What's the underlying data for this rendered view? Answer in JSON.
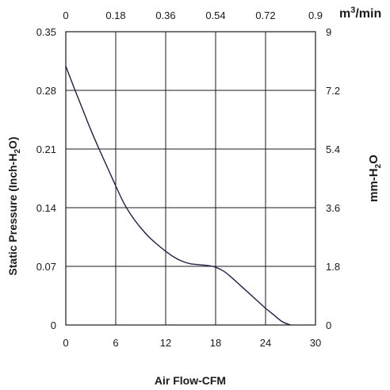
{
  "chart_data": {
    "type": "line",
    "x_bottom": {
      "label": "Air Flow-CFM",
      "range": [
        0,
        30
      ],
      "ticks": [
        "0",
        "6",
        "12",
        "18",
        "24",
        "30"
      ]
    },
    "x_top": {
      "label_base": "m",
      "label_sup": "3",
      "label_tail": "/min",
      "range": [
        0,
        0.9
      ],
      "ticks": [
        "0",
        "0.18",
        "0.36",
        "0.54",
        "0.72",
        "0.9"
      ]
    },
    "y_left": {
      "label_pre": "Static Pressure (Inch-H",
      "label_sub": "2",
      "label_post": "O)",
      "range": [
        0,
        0.35
      ],
      "ticks": [
        "0",
        "0.07",
        "0.14",
        "0.21",
        "0.28",
        "0.35"
      ]
    },
    "y_right": {
      "label_pre": "mm-H",
      "label_sub": "2",
      "label_post": "O",
      "range": [
        0,
        9
      ],
      "ticks": [
        "0",
        "1.8",
        "3.6",
        "5.4",
        "7.2",
        "9"
      ]
    },
    "grid": true,
    "series": [
      {
        "x": [
          0,
          1,
          2,
          3,
          4,
          5,
          6,
          7,
          8,
          9,
          10,
          11,
          12,
          13,
          14,
          15,
          16,
          17,
          18,
          19,
          20,
          21,
          22,
          23,
          24,
          25,
          26,
          27
        ],
        "y": [
          0.309,
          0.283,
          0.258,
          0.233,
          0.21,
          0.188,
          0.166,
          0.145,
          0.129,
          0.116,
          0.105,
          0.096,
          0.088,
          0.081,
          0.076,
          0.073,
          0.072,
          0.071,
          0.069,
          0.064,
          0.056,
          0.047,
          0.038,
          0.029,
          0.02,
          0.012,
          0.004,
          0.0
        ]
      }
    ]
  }
}
